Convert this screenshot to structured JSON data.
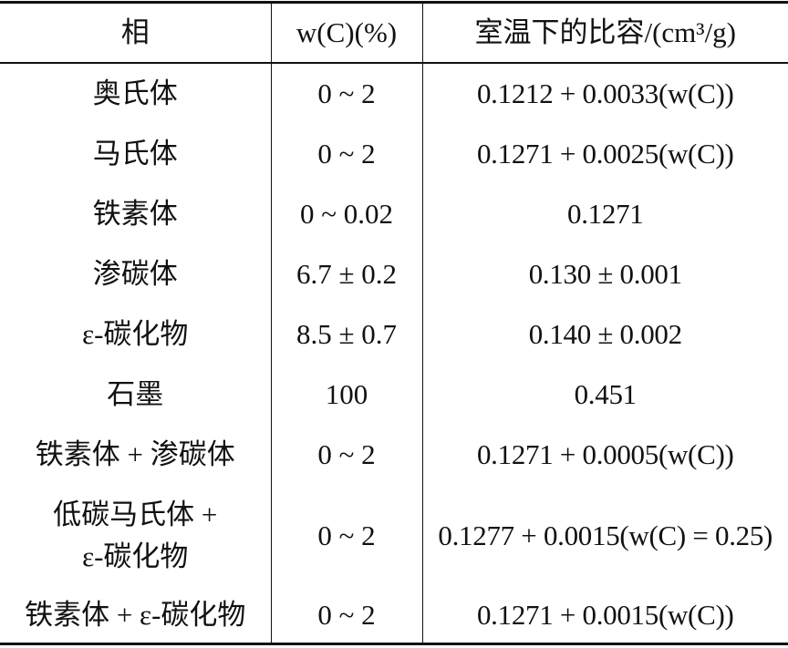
{
  "table": {
    "header": [
      "相",
      "w(C)(%)",
      "室温下的比容/(cm³/g)"
    ],
    "rows": [
      [
        "奥氏体",
        "0 ~ 2",
        "0.1212 + 0.0033(w(C))"
      ],
      [
        "马氏体",
        "0 ~ 2",
        "0.1271 + 0.0025(w(C))"
      ],
      [
        "铁素体",
        "0 ~ 0.02",
        "0.1271"
      ],
      [
        "渗碳体",
        "6.7 ± 0.2",
        "0.130 ± 0.001"
      ],
      [
        "ε-碳化物",
        "8.5 ± 0.7",
        "0.140 ± 0.002"
      ],
      [
        "石墨",
        "100",
        "0.451"
      ],
      [
        "铁素体 + 渗碳体",
        "0 ~ 2",
        "0.1271 + 0.0005(w(C))"
      ],
      [
        "低碳马氏体 +\nε-碳化物",
        "0 ~ 2",
        "0.1277 + 0.0015(w(C) = 0.25)"
      ],
      [
        "铁素体 + ε-碳化物",
        "0 ~ 2",
        "0.1271 + 0.0015(w(C))"
      ]
    ]
  }
}
